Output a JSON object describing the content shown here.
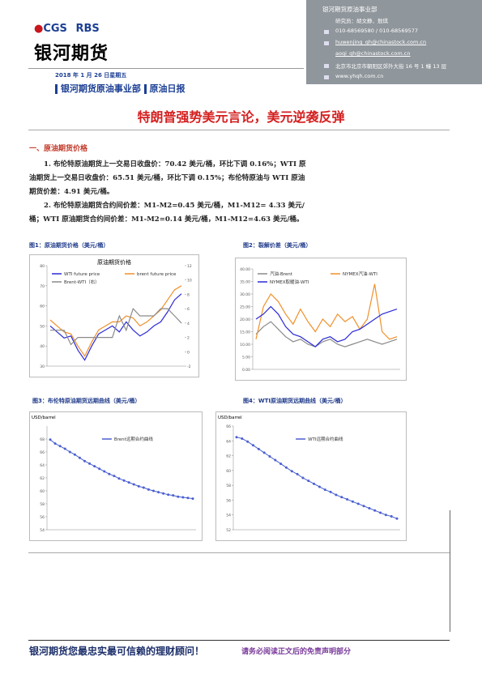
{
  "header": {
    "logo_left": "CGS",
    "logo_right": "RBS",
    "company": "银河期货",
    "contact": [
      "银河期货原油事业部",
      "研究员：胡文静、敖琪",
      "010-68569580 / 010-68569577",
      "huwenjing_qh@chinastock.com.cn",
      "aoqi_qh@chinastock.com.cn",
      "北京市北京市朝阳区郊外大街 16 号 1 幢 13 层",
      "www.yhqh.com.cn"
    ],
    "date": "2018 年 1 月 26 日星期五",
    "department": "银河期货原油事业部",
    "report": "原油日报"
  },
  "title": "特朗普强势美元言论，美元逆袭反弹",
  "section": "一、原油期货价格",
  "paragraphs": [
    "1. 布伦特原油期货上一交易日收盘价：70.42 美元/桶，环比下调 0.16%；WTI 原油期货上一交易日收盘价：65.51 美元/桶，环比下调 0.15%；布伦特原油与 WTI 原油期货价差：4.91 美元/桶。",
    "2. 布伦特原油期货合约间价差：M1-M2=0.45 美元/桶，M1-M12= 4.33 美元/桶；WTI 原油期货合约间价差：M1-M2=0.14 美元/桶，M1-M12=4.63 美元/桶。"
  ],
  "figures": [
    {
      "caption": "图1：原油期货价格（美元/桶）",
      "chart": {
        "type": "line",
        "title": "原油期货价格",
        "ylim": [
          30,
          80
        ],
        "yticks": [
          30,
          40,
          50,
          60,
          70,
          80
        ],
        "y2lim": [
          -2,
          12
        ],
        "y2ticks": [
          -2,
          0,
          2,
          4,
          6,
          8,
          10,
          12
        ],
        "series": [
          {
            "name": "WTI future price",
            "color": "#2b2bd6",
            "values": [
              50,
              47,
              44,
              45,
              38,
              33,
              40,
              46,
              48,
              50,
              47,
              52,
              48,
              45,
              47,
              50,
              52,
              57,
              63,
              66
            ]
          },
          {
            "name": "brent future price",
            "color": "#f0902a",
            "values": [
              53,
              50,
              47,
              46,
              40,
              35,
              42,
              48,
              50,
              52,
              52,
              55,
              54,
              50,
              52,
              55,
              58,
              63,
              68,
              70
            ]
          },
          {
            "name": "Brent-WTI（右）",
            "color": "#8a8a8a",
            "axis": "y2",
            "values": [
              3,
              3,
              3,
              1,
              2,
              2,
              2,
              2,
              2,
              2,
              5,
              3,
              6,
              5,
              5,
              5,
              6,
              6,
              5,
              4
            ]
          }
        ]
      }
    },
    {
      "caption": "图2：裂解价差（美元/桶）",
      "chart": {
        "type": "line",
        "ylim": [
          0,
          40
        ],
        "yticks": [
          {
            "value": 0,
            "label": "0.00"
          },
          {
            "value": 5,
            "label": "5.00"
          },
          {
            "value": 10,
            "label": "10.00"
          },
          {
            "value": 15,
            "label": "15.00"
          },
          {
            "value": 20,
            "label": "20.00"
          },
          {
            "value": 25,
            "label": "25.00"
          },
          {
            "value": 30,
            "label": "30.00"
          },
          {
            "value": 35,
            "label": "35.00"
          },
          {
            "value": 40,
            "label": "40.00"
          }
        ],
        "series": [
          {
            "name": "汽油-Brent",
            "color": "#8a8a8a",
            "values": [
              14,
              17,
              19,
              16,
              13,
              11,
              12,
              10,
              9,
              11,
              12,
              10,
              9,
              10,
              11,
              12,
              11,
              10,
              11,
              12
            ]
          },
          {
            "name": "NYMEX汽油-WTI",
            "color": "#f0902a",
            "values": [
              12,
              25,
              30,
              27,
              22,
              18,
              24,
              19,
              15,
              20,
              17,
              22,
              19,
              21,
              16,
              20,
              34,
              15,
              12,
              13
            ]
          },
          {
            "name": "NYMEX取暖油-WTI",
            "color": "#2b2bd6",
            "values": [
              20,
              22,
              25,
              22,
              17,
              14,
              13,
              11,
              9,
              12,
              13,
              11,
              12,
              15,
              16,
              18,
              20,
              22,
              23,
              24
            ]
          }
        ]
      }
    },
    {
      "caption": "图3：布伦特原油期货远期曲线（美元/桶）",
      "chart": {
        "type": "line",
        "unit": "USD/barrel",
        "ylim": [
          54,
          70
        ],
        "yticks": [
          54,
          56,
          58,
          60,
          62,
          64,
          66,
          68
        ],
        "markers": true,
        "series": [
          {
            "name": "Brent远期合约曲线",
            "color": "#4a5fd0",
            "values": [
              67.9,
              67.3,
              66.9,
              66.5,
              66.0,
              65.6,
              65.1,
              64.6,
              64.2,
              63.8,
              63.4,
              63.0,
              62.6,
              62.3,
              61.9,
              61.6,
              61.3,
              61.0,
              60.7,
              60.5,
              60.2,
              60.0,
              59.8,
              59.6,
              59.4,
              59.3,
              59.1,
              59.0,
              58.9,
              58.8
            ]
          }
        ]
      }
    },
    {
      "caption": "图4：WTI原油期货远期曲线（美元/桶）",
      "chart": {
        "type": "line",
        "unit": "USD/barrel",
        "ylim": [
          52,
          66
        ],
        "yticks": [
          52,
          54,
          56,
          58,
          60,
          62,
          64,
          66
        ],
        "markers": true,
        "series": [
          {
            "name": "WTI远期合约曲线",
            "color": "#4a5fd0",
            "values": [
              64.5,
              64.3,
              63.9,
              63.4,
              62.9,
              62.4,
              61.9,
              61.4,
              60.9,
              60.4,
              59.9,
              59.5,
              59.0,
              58.6,
              58.2,
              57.8,
              57.4,
              57.1,
              56.7,
              56.4,
              56.1,
              55.8,
              55.5,
              55.2,
              54.9,
              54.6,
              54.3,
              54.0,
              53.8,
              53.5
            ]
          }
        ]
      }
    }
  ],
  "footer": {
    "slogan": "银河期货您最忠实最可信赖的理财顾问！",
    "notice": "请务必阅读正文后的免责声明部分"
  }
}
